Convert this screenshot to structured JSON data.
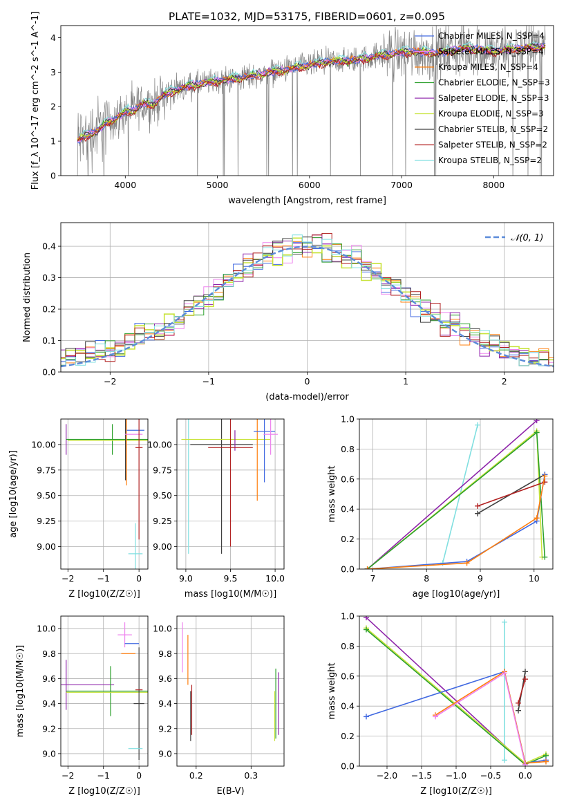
{
  "figure_title": "PLATE=1032, MJD=53175, FIBERID=0601, z=0.095",
  "colors": {
    "chabrier_miles": "#4169e1",
    "salpeter_miles": "#ee82ee",
    "kroupa_miles": "#ff7f0e",
    "chabrier_elodie": "#2ca02c",
    "salpeter_elodie": "#8e24aa",
    "kroupa_elodie": "#c8e33a",
    "chabrier_stelib": "#404040",
    "salpeter_stelib": "#b22222",
    "kroupa_stelib": "#80dfe0",
    "data": "#808080",
    "normal_curve": "#5b8bd9"
  },
  "chart_data": [
    {
      "id": "spectrum",
      "type": "line",
      "xlabel": "wavelength [Angstrom, rest frame]",
      "ylabel": "Flux [f_λ 10^-17 erg cm^-2 s^-1 A^-1]",
      "xlim": [
        3300,
        8650
      ],
      "ylim": [
        0,
        4.35
      ],
      "xticks": [
        4000,
        5000,
        6000,
        7000,
        8000
      ],
      "yticks": [
        0,
        1,
        2,
        3,
        4
      ],
      "grid": false,
      "legend_position": "top-right",
      "legend": [
        "Chabrier MILES, N_SSP=4",
        "Salpeter MILES, N_SSP=4",
        "Kroupa MILES, N_SSP=4",
        "Chabrier ELODIE, N_SSP=3",
        "Salpeter ELODIE, N_SSP=3",
        "Kroupa ELODIE, N_SSP=3",
        "Chabrier STELIB, N_SSP=2",
        "Salpeter STELIB, N_SSP=2",
        "Kroupa STELIB, N_SSP=2"
      ],
      "model_points": {
        "x": [
          3500,
          3600,
          3700,
          3800,
          3900,
          4000,
          4100,
          4200,
          4300,
          4400,
          4500,
          4700,
          5000,
          5300,
          5600,
          5900,
          6200,
          6500,
          6800,
          7100,
          7400,
          7700,
          8000,
          8300,
          8500
        ],
        "y": [
          1.05,
          1.2,
          1.3,
          1.55,
          1.65,
          1.85,
          1.9,
          2.1,
          2.05,
          2.3,
          2.45,
          2.6,
          2.75,
          2.85,
          3.0,
          3.15,
          3.3,
          3.35,
          3.5,
          3.6,
          3.55,
          3.7,
          3.6,
          3.7,
          3.75
        ]
      }
    },
    {
      "id": "residuals",
      "type": "line",
      "xlabel": "(data-model)/error",
      "ylabel": "Normed distribution",
      "xlim": [
        -2.5,
        2.5
      ],
      "ylim": [
        0,
        0.475
      ],
      "xticks": [
        -2,
        -1,
        0,
        1,
        2
      ],
      "yticks": [
        0.0,
        0.1,
        0.2,
        0.3,
        0.4
      ],
      "grid": true,
      "legend_position": "top-right",
      "legend": [
        "𝒩(0, 1)"
      ]
    },
    {
      "id": "age_vs_Z",
      "type": "scatter",
      "xlabel": "Z [log10(Z/Z☉)]",
      "ylabel": "age  [log10(age/yr)]",
      "xlim": [
        -2.2,
        0.25
      ],
      "ylim": [
        8.78,
        10.25
      ],
      "xticks": [
        -2,
        -1,
        0
      ],
      "yticks": [
        9.0,
        9.25,
        9.5,
        9.75,
        10.0
      ],
      "grid": true,
      "crosses": [
        {
          "c": "salpeter_elodie",
          "x": -2.05,
          "y": 10.05,
          "xerr": 0.0,
          "yerr": 0.15
        },
        {
          "c": "chabrier_elodie",
          "x": -0.75,
          "y": 10.05,
          "xerr": 1.3,
          "yerr": 0.15
        },
        {
          "c": "kroupa_elodie",
          "x": -0.75,
          "y": 10.04,
          "xerr": 1.25,
          "yerr": 0.0
        },
        {
          "c": "kroupa_miles",
          "x": -0.35,
          "y": 10.05,
          "xerr": 0.0,
          "yerr": 0.45
        },
        {
          "c": "chabrier_stelib",
          "x": -0.38,
          "y": 10.03,
          "xerr": 0.0,
          "yerr": 0.38
        },
        {
          "c": "chabrier_miles",
          "x": -0.1,
          "y": 10.14,
          "xerr": 0.25,
          "yerr": 0.0
        },
        {
          "c": "salpeter_miles",
          "x": -0.15,
          "y": 10.1,
          "xerr": 0.25,
          "yerr": 0.0
        },
        {
          "c": "salpeter_stelib",
          "x": 0.0,
          "y": 9.97,
          "xerr": 0.1,
          "yerr": 0.9
        },
        {
          "c": "kroupa_stelib",
          "x": -0.1,
          "y": 8.93,
          "xerr": 0.2,
          "yerr": 0.3
        }
      ]
    },
    {
      "id": "age_vs_mass",
      "type": "scatter",
      "xlabel": "mass [log10(M/M☉)]",
      "ylabel": "",
      "xlim": [
        8.9,
        10.1
      ],
      "ylim": [
        8.78,
        10.25
      ],
      "xticks": [
        9.0,
        9.5,
        10.0
      ],
      "yticks": [
        9.0,
        9.25,
        9.5,
        9.75,
        10.0
      ],
      "grid": true,
      "crosses": [
        {
          "c": "kroupa_stelib",
          "x": 9.03,
          "y": 10.0,
          "xerr": 0.0,
          "yerr": 1.07
        },
        {
          "c": "chabrier_stelib",
          "x": 9.4,
          "y": 10.0,
          "xerr": 0.35,
          "yerr": 1.07
        },
        {
          "c": "kroupa_elodie",
          "x": 9.45,
          "y": 10.05,
          "xerr": 0.5,
          "yerr": 0.0
        },
        {
          "c": "salpeter_elodie",
          "x": 9.55,
          "y": 10.04,
          "xerr": 0.0,
          "yerr": 0.1
        },
        {
          "c": "salpeter_stelib",
          "x": 9.5,
          "y": 9.97,
          "xerr": 0.25,
          "yerr": 0.97
        },
        {
          "c": "kroupa_miles",
          "x": 9.8,
          "y": 10.05,
          "xerr": 0.0,
          "yerr": 0.6
        },
        {
          "c": "chabrier_miles",
          "x": 9.88,
          "y": 10.13,
          "xerr": 0.12,
          "yerr": 0.5
        },
        {
          "c": "salpeter_miles",
          "x": 9.95,
          "y": 10.1,
          "xerr": 0.08,
          "yerr": 0.2
        }
      ]
    },
    {
      "id": "weight_vs_age",
      "type": "line",
      "xlabel": "age  [log10(age/yr)]",
      "ylabel": "mass weight",
      "xlim": [
        6.75,
        10.35
      ],
      "ylim": [
        0,
        1.0
      ],
      "xticks": [
        7,
        8,
        9,
        10
      ],
      "yticks": [
        0.0,
        0.2,
        0.4,
        0.6,
        0.8,
        1.0
      ],
      "grid": true,
      "series": [
        {
          "c": "kroupa_stelib",
          "x": [
            8.3,
            8.95
          ],
          "y": [
            0.04,
            0.96
          ]
        },
        {
          "c": "salpeter_elodie",
          "x": [
            6.9,
            10.05
          ],
          "y": [
            0.0,
            0.99
          ]
        },
        {
          "c": "kroupa_elodie",
          "x": [
            6.9,
            10.05,
            10.15
          ],
          "y": [
            0.0,
            0.92,
            0.08
          ]
        },
        {
          "c": "chabrier_elodie",
          "x": [
            6.9,
            10.05,
            10.2
          ],
          "y": [
            0.0,
            0.91,
            0.08
          ]
        },
        {
          "c": "chabrier_stelib",
          "x": [
            8.95,
            10.2
          ],
          "y": [
            0.37,
            0.63
          ]
        },
        {
          "c": "salpeter_stelib",
          "x": [
            8.95,
            10.2
          ],
          "y": [
            0.42,
            0.58
          ]
        },
        {
          "c": "chabrier_miles",
          "x": [
            6.9,
            8.75,
            10.05,
            10.2
          ],
          "y": [
            0.0,
            0.05,
            0.32,
            0.63
          ]
        },
        {
          "c": "kroupa_miles",
          "x": [
            6.9,
            8.75,
            10.05,
            10.2
          ],
          "y": [
            0.0,
            0.04,
            0.34,
            0.62
          ]
        }
      ]
    },
    {
      "id": "mass_vs_Z",
      "type": "scatter",
      "xlabel": "Z [log10(Z/Z☉)]",
      "ylabel": "mass [log10(M/M☉)]",
      "xlim": [
        -2.2,
        0.25
      ],
      "ylim": [
        8.9,
        10.1
      ],
      "xticks": [
        -2,
        -1,
        0
      ],
      "yticks": [
        9.0,
        9.2,
        9.4,
        9.6,
        9.8,
        10.0
      ],
      "grid": true,
      "crosses": [
        {
          "c": "salpeter_elodie",
          "x": -2.05,
          "y": 9.55,
          "xerr": 1.35,
          "yerr": 0.2
        },
        {
          "c": "chabrier_elodie",
          "x": -0.8,
          "y": 9.5,
          "xerr": 1.25,
          "yerr": 0.2
        },
        {
          "c": "kroupa_elodie",
          "x": -0.9,
          "y": 9.49,
          "xerr": 1.15,
          "yerr": 0.0
        },
        {
          "c": "salpeter_miles",
          "x": -0.4,
          "y": 9.95,
          "xerr": 0.2,
          "yerr": 0.1
        },
        {
          "c": "chabrier_miles",
          "x": -0.2,
          "y": 9.88,
          "xerr": 0.2,
          "yerr": 0.0
        },
        {
          "c": "kroupa_miles",
          "x": -0.3,
          "y": 9.8,
          "xerr": 0.2,
          "yerr": 0.0
        },
        {
          "c": "chabrier_stelib",
          "x": 0.0,
          "y": 9.4,
          "xerr": 0.15,
          "yerr": 0.45
        },
        {
          "c": "salpeter_stelib",
          "x": 0.0,
          "y": 9.51,
          "xerr": 0.1,
          "yerr": 0.0
        },
        {
          "c": "kroupa_stelib",
          "x": -0.1,
          "y": 9.04,
          "xerr": 0.2,
          "yerr": 0.0
        }
      ]
    },
    {
      "id": "mass_vs_EBV",
      "type": "scatter",
      "xlabel": "E(B-V)",
      "ylabel": "",
      "xlim": [
        0.165,
        0.36
      ],
      "ylim": [
        8.9,
        10.1
      ],
      "xticks": [
        0.2,
        0.3
      ],
      "yticks": [
        9.0,
        9.2,
        9.4,
        9.6,
        9.8,
        10.0
      ],
      "grid": true,
      "crosses": [
        {
          "c": "salpeter_miles",
          "x": 0.175,
          "y": 9.85,
          "xerr": 0.0,
          "yerr": 0.2
        },
        {
          "c": "kroupa_miles",
          "x": 0.185,
          "y": 9.75,
          "xerr": 0.0,
          "yerr": 0.2
        },
        {
          "c": "chabrier_stelib",
          "x": 0.19,
          "y": 9.3,
          "xerr": 0.0,
          "yerr": 0.2
        },
        {
          "c": "salpeter_stelib",
          "x": 0.192,
          "y": 9.35,
          "xerr": 0.0,
          "yerr": 0.2
        },
        {
          "c": "chabrier_elodie",
          "x": 0.345,
          "y": 9.4,
          "xerr": 0.0,
          "yerr": 0.28
        },
        {
          "c": "salpeter_elodie",
          "x": 0.35,
          "y": 9.4,
          "xerr": 0.0,
          "yerr": 0.25
        },
        {
          "c": "kroupa_elodie",
          "x": 0.343,
          "y": 9.3,
          "xerr": 0.0,
          "yerr": 0.2
        }
      ]
    },
    {
      "id": "weight_vs_Z",
      "type": "line",
      "xlabel": "Z [log10(Z/Z☉)]",
      "ylabel": "mass weight",
      "xlim": [
        -2.4,
        0.4
      ],
      "ylim": [
        0,
        1.0
      ],
      "xticks": [
        -2.0,
        -1.5,
        -1.0,
        -0.5,
        0.0
      ],
      "yticks": [
        0.0,
        0.2,
        0.4,
        0.6,
        0.8,
        1.0
      ],
      "grid": true,
      "series": [
        {
          "c": "kroupa_stelib",
          "x": [
            -0.3,
            -0.3
          ],
          "y": [
            0.04,
            0.96
          ]
        },
        {
          "c": "salpeter_elodie",
          "x": [
            -2.3,
            0.0
          ],
          "y": [
            0.99,
            0.01
          ]
        },
        {
          "c": "kroupa_elodie",
          "x": [
            -2.3,
            0.0,
            0.3
          ],
          "y": [
            0.92,
            0.02,
            0.08
          ]
        },
        {
          "c": "chabrier_elodie",
          "x": [
            -2.3,
            0.0,
            0.3
          ],
          "y": [
            0.91,
            0.01,
            0.07
          ]
        },
        {
          "c": "chabrier_miles",
          "x": [
            -2.3,
            -0.3,
            0.0,
            0.3
          ],
          "y": [
            0.33,
            0.63,
            0.02,
            0.04
          ]
        },
        {
          "c": "kroupa_miles",
          "x": [
            -1.3,
            -0.3,
            0.0,
            0.3
          ],
          "y": [
            0.34,
            0.63,
            0.02,
            0.03
          ]
        },
        {
          "c": "salpeter_miles",
          "x": [
            -1.3,
            -0.3,
            0.0
          ],
          "y": [
            0.33,
            0.62,
            0.01
          ]
        },
        {
          "c": "chabrier_stelib",
          "x": [
            -0.1,
            0.0
          ],
          "y": [
            0.37,
            0.63
          ]
        },
        {
          "c": "salpeter_stelib",
          "x": [
            -0.1,
            0.0
          ],
          "y": [
            0.42,
            0.58
          ]
        }
      ]
    }
  ]
}
